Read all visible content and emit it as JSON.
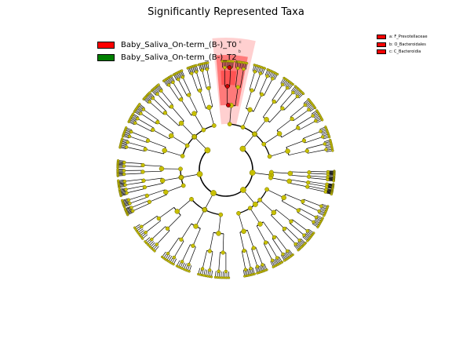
{
  "figure": {
    "title": "Significantly Represented Taxa",
    "legend": [
      {
        "label": "Baby_Saliva_On-term_(B-)_T0",
        "color": "#ff0000"
      },
      {
        "label": "Baby_Saliva_On-term_(B-)_T2",
        "color": "#008000"
      }
    ],
    "clade_key": [
      {
        "label": "a: F_Prevotellaceae",
        "color": "#ff0000"
      },
      {
        "label": "b: O_Bacteroidales",
        "color": "#ff0000"
      },
      {
        "label": "c: C_Bacteroidia",
        "color": "#ff0000"
      }
    ],
    "highlight_letters": [
      "c",
      "b",
      "a"
    ],
    "colors": {
      "node_fill": "#c8c000",
      "node_stroke": "#6e6a00",
      "branch": "#000000",
      "highlight_dark": "#ff3333",
      "highlight_light": "#ffaaaa",
      "significant_node": "#cc0000"
    }
  }
}
